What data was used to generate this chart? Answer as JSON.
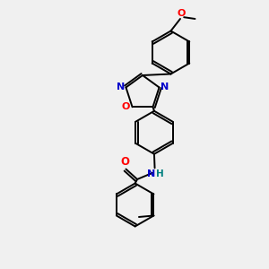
{
  "background_color": "#f0f0f0",
  "bond_color": "#000000",
  "atom_colors": {
    "O": "#ff0000",
    "N": "#0000cc",
    "C": "#000000",
    "H": "#008080"
  },
  "figsize": [
    3.0,
    3.0
  ],
  "dpi": 100,
  "xlim": [
    0,
    10
  ],
  "ylim": [
    0,
    10
  ]
}
